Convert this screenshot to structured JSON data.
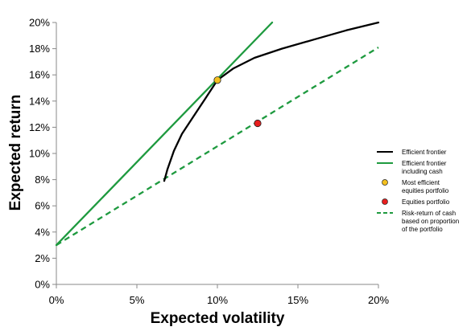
{
  "chart_data": {
    "type": "line",
    "xlabel": "Expected volatility",
    "ylabel": "Expected return",
    "xlim": [
      0,
      20
    ],
    "ylim": [
      0,
      20
    ],
    "x_ticks": [
      0,
      5,
      10,
      15,
      20
    ],
    "y_ticks": [
      0,
      2,
      4,
      6,
      8,
      10,
      12,
      14,
      16,
      18,
      20
    ],
    "x_tick_labels": [
      "0%",
      "5%",
      "10%",
      "15%",
      "20%"
    ],
    "y_tick_labels": [
      "0%",
      "2%",
      "4%",
      "6%",
      "8%",
      "10%",
      "12%",
      "14%",
      "16%",
      "18%",
      "20%"
    ],
    "grid": false,
    "legend_position": "right",
    "series": [
      {
        "name": "Efficient frontier",
        "kind": "line",
        "style": "solid",
        "color": "#000000",
        "points": [
          [
            6.7,
            7.9
          ],
          [
            6.9,
            8.8
          ],
          [
            7.3,
            10.2
          ],
          [
            7.8,
            11.5
          ],
          [
            8.5,
            12.8
          ],
          [
            9.2,
            14.1
          ],
          [
            10.0,
            15.6
          ],
          [
            11.0,
            16.5
          ],
          [
            12.3,
            17.3
          ],
          [
            14.0,
            18.0
          ],
          [
            16.0,
            18.7
          ],
          [
            18.0,
            19.4
          ],
          [
            20.0,
            20.0
          ]
        ]
      },
      {
        "name": "Efficient frontier\nincluding cash",
        "kind": "line",
        "style": "solid",
        "color": "#1e9a3f",
        "points": [
          [
            0,
            3.0
          ],
          [
            13.4,
            20.0
          ]
        ]
      },
      {
        "name": "Most efficient\nequities portfolio",
        "kind": "marker",
        "color": "#f4c01e",
        "points": [
          [
            10.0,
            15.6
          ]
        ]
      },
      {
        "name": "Equities portfolio",
        "kind": "marker",
        "color": "#e81e1e",
        "points": [
          [
            12.5,
            12.3
          ]
        ]
      },
      {
        "name": "Risk-return of cash\nbased on proportion\nof the portfolio",
        "kind": "line",
        "style": "dashed",
        "color": "#1e9a3f",
        "points": [
          [
            0,
            3.0
          ],
          [
            20.0,
            18.1
          ]
        ]
      }
    ]
  }
}
